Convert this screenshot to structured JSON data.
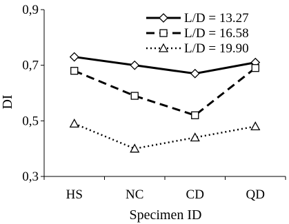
{
  "chart_data": {
    "type": "line",
    "categories": [
      "HS",
      "NC",
      "CD",
      "QD"
    ],
    "series": [
      {
        "name": "L/D = 13.27",
        "values": [
          0.73,
          0.7,
          0.67,
          0.71
        ],
        "marker": "diamond",
        "dash": "solid",
        "color": "#000000"
      },
      {
        "name": "L/D = 16.58",
        "values": [
          0.68,
          0.59,
          0.52,
          0.69
        ],
        "marker": "square",
        "dash": "dashed",
        "color": "#000000"
      },
      {
        "name": "L/D = 19.90",
        "values": [
          0.49,
          0.4,
          0.44,
          0.48
        ],
        "marker": "triangle",
        "dash": "dotted",
        "color": "#000000"
      }
    ],
    "xlabel": "Specimen ID",
    "ylabel": "DI",
    "ylim": [
      0.3,
      0.9
    ],
    "yticks": [
      "0,3",
      "0,5",
      "0,7",
      "0,9"
    ],
    "ytick_values": [
      0.3,
      0.5,
      0.7,
      0.9
    ],
    "grid": false,
    "legend_position": "top-right"
  }
}
